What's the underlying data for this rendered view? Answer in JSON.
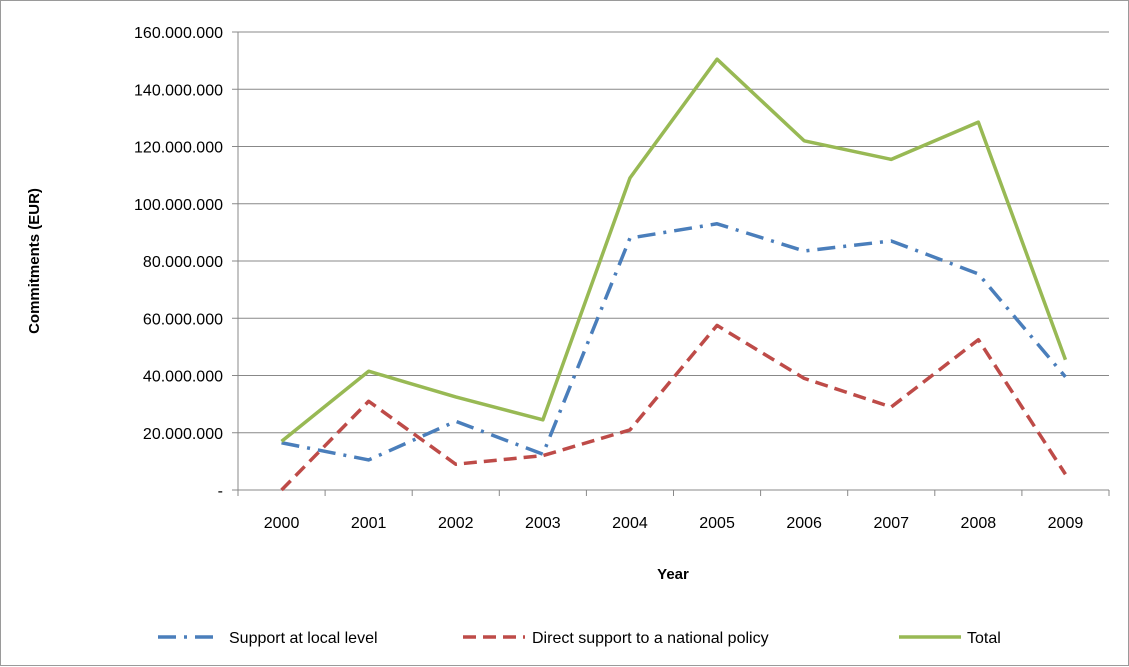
{
  "chart_data": {
    "type": "line",
    "title": "",
    "xlabel": "Year",
    "ylabel": "Commitments (EUR)",
    "categories": [
      "2000",
      "2001",
      "2002",
      "2003",
      "2004",
      "2005",
      "2006",
      "2007",
      "2008",
      "2009"
    ],
    "ylim": [
      0,
      160000000
    ],
    "yticks": [
      0,
      20000000,
      40000000,
      60000000,
      80000000,
      100000000,
      120000000,
      140000000,
      160000000
    ],
    "ytick_labels": [
      "-",
      "20.000.000",
      "40.000.000",
      "60.000.000",
      "80.000.000",
      "100.000.000",
      "120.000.000",
      "140.000.000",
      "160.000.000"
    ],
    "grid": true,
    "legend_position": "bottom",
    "series": [
      {
        "name": "Support at local level",
        "color": "#4a7ebb",
        "style": "dash-dot",
        "values": [
          16500000,
          10500000,
          24000000,
          12500000,
          88000000,
          93000000,
          83500000,
          87000000,
          75500000,
          39500000
        ]
      },
      {
        "name": "Direct support to a national policy",
        "color": "#be4b48",
        "style": "dashed",
        "values": [
          0,
          31000000,
          9000000,
          12000000,
          21000000,
          57500000,
          39000000,
          29000000,
          52500000,
          5500000
        ]
      },
      {
        "name": "Total",
        "color": "#98b954",
        "style": "solid",
        "values": [
          17000000,
          41500000,
          32500000,
          24500000,
          109000000,
          150500000,
          122000000,
          115500000,
          128500000,
          45500000
        ]
      }
    ]
  }
}
